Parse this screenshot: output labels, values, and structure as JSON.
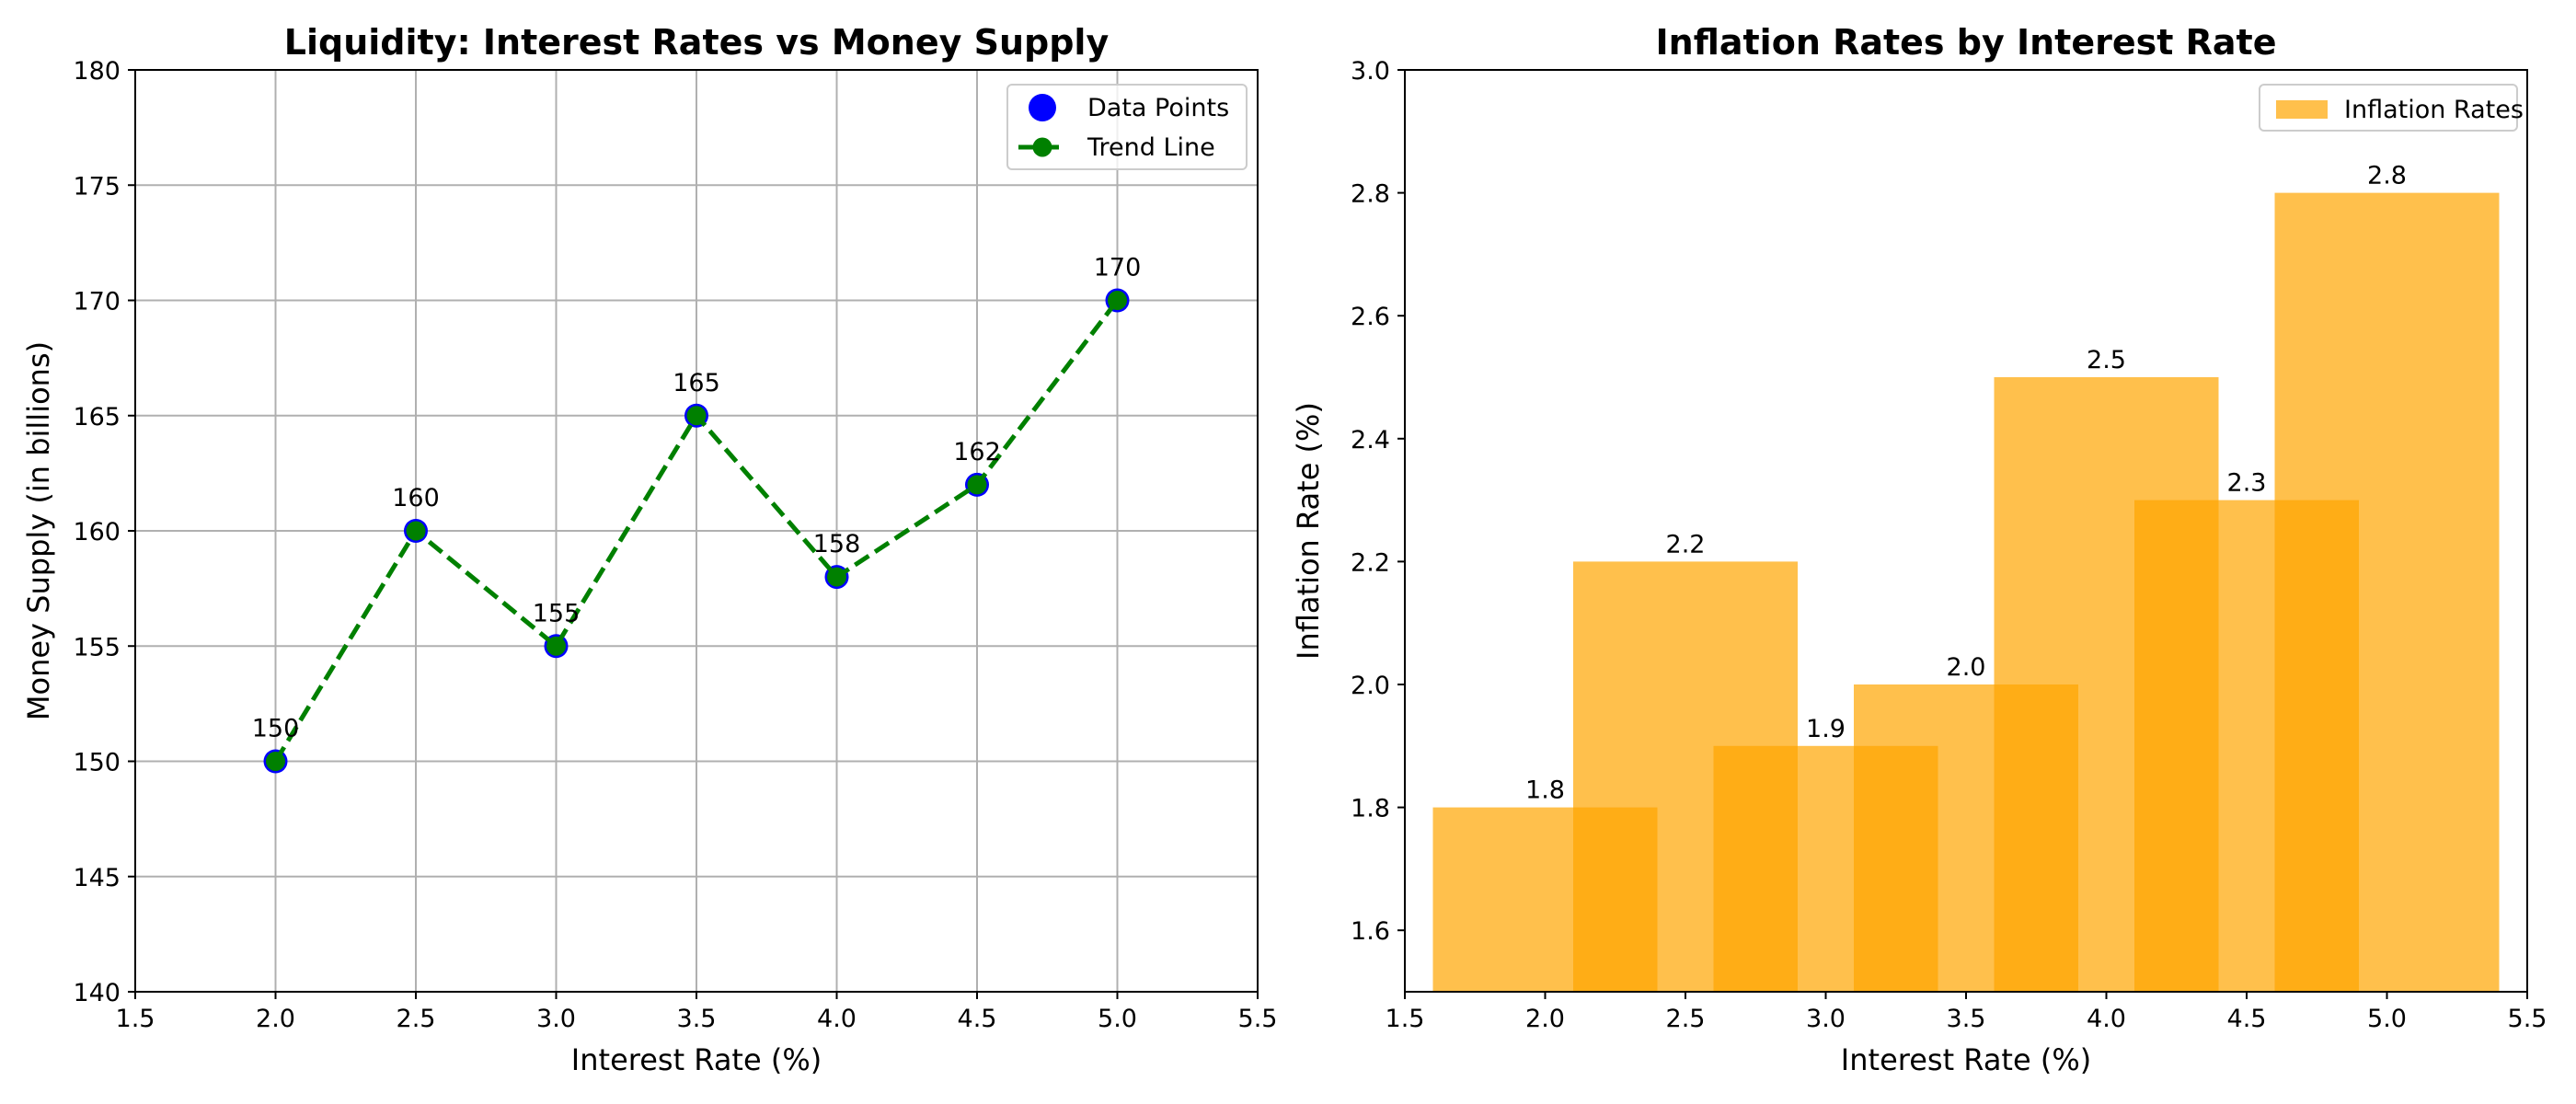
{
  "chart_data": [
    {
      "type": "line",
      "title": "Liquidity: Interest Rates vs Money Supply",
      "xlabel": "Interest Rate (%)",
      "ylabel": "Money Supply (in billions)",
      "xlim": [
        1.5,
        5.5
      ],
      "ylim": [
        140,
        180
      ],
      "xticks": [
        1.5,
        2.0,
        2.5,
        3.0,
        3.5,
        4.0,
        4.5,
        5.0,
        5.5
      ],
      "yticks": [
        140,
        145,
        150,
        155,
        160,
        165,
        170,
        175,
        180
      ],
      "grid": true,
      "legend_position": "top-right",
      "x": [
        2.0,
        2.5,
        3.0,
        3.5,
        4.0,
        4.5,
        5.0
      ],
      "series": [
        {
          "name": "Data Points",
          "kind": "scatter",
          "color": "#0000ff",
          "values": [
            150,
            160,
            155,
            165,
            158,
            162,
            170
          ]
        },
        {
          "name": "Trend Line",
          "kind": "line",
          "color": "#008000",
          "linestyle": "dashed",
          "values": [
            150,
            160,
            155,
            165,
            158,
            162,
            170
          ]
        }
      ],
      "data_labels": [
        "150",
        "160",
        "155",
        "165",
        "158",
        "162",
        "170"
      ]
    },
    {
      "type": "bar",
      "title": "Inflation Rates by Interest Rate",
      "xlabel": "Interest Rate (%)",
      "ylabel": "Inflation Rate (%)",
      "xlim": [
        1.5,
        5.5
      ],
      "ylim": [
        1.5,
        3.0
      ],
      "xticks": [
        1.5,
        2.0,
        2.5,
        3.0,
        3.5,
        4.0,
        4.5,
        5.0,
        5.5
      ],
      "yticks": [
        1.6,
        1.8,
        2.0,
        2.2,
        2.4,
        2.6,
        2.8,
        3.0
      ],
      "grid": false,
      "legend_position": "top-right",
      "x": [
        2.0,
        2.5,
        3.0,
        3.5,
        4.0,
        4.5,
        5.0
      ],
      "bar_width": 0.8,
      "series": [
        {
          "name": "Inflation Rates",
          "color": "#ffa500",
          "opacity": 0.7,
          "values": [
            1.8,
            2.2,
            1.9,
            2.0,
            2.5,
            2.3,
            2.8
          ]
        }
      ],
      "data_labels": [
        "1.8",
        "2.2",
        "1.9",
        "2.0",
        "2.5",
        "2.3",
        "2.8"
      ]
    }
  ]
}
